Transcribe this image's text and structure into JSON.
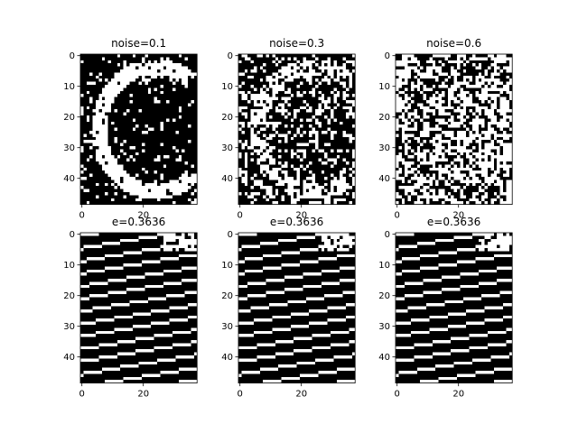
{
  "chart_data": [
    {
      "type": "heatmap",
      "title": "noise=0.1",
      "kind": "noisy-image",
      "noise": 0.1,
      "x_ticks": [
        0,
        20
      ],
      "y_ticks": [
        0,
        10,
        20,
        30,
        40
      ],
      "xlim": [
        -0.5,
        37.5
      ],
      "ylim": [
        48.5,
        -0.5
      ],
      "colormap": "gray (0=black, 1=white)",
      "grid": false
    },
    {
      "type": "heatmap",
      "title": "noise=0.3",
      "kind": "noisy-image",
      "noise": 0.3,
      "x_ticks": [
        0,
        20
      ],
      "y_ticks": [
        0,
        10,
        20,
        30,
        40
      ],
      "xlim": [
        -0.5,
        37.5
      ],
      "ylim": [
        48.5,
        -0.5
      ],
      "colormap": "gray (0=black, 1=white)",
      "grid": false
    },
    {
      "type": "heatmap",
      "title": "noise=0.6",
      "kind": "noisy-image",
      "noise": 0.6,
      "x_ticks": [
        0,
        20
      ],
      "y_ticks": [
        0,
        10,
        20,
        30,
        40
      ],
      "xlim": [
        -0.5,
        37.5
      ],
      "ylim": [
        48.5,
        -0.5
      ],
      "colormap": "gray (0=black, 1=white)",
      "grid": false
    },
    {
      "type": "heatmap",
      "title": "e=0.3636",
      "kind": "stripes",
      "x_ticks": [
        0,
        20
      ],
      "y_ticks": [
        0,
        10,
        20,
        30,
        40
      ],
      "xlim": [
        -0.5,
        37.5
      ],
      "ylim": [
        48.5,
        -0.5
      ],
      "colormap": "gray (0=black, 1=white)",
      "grid": false
    },
    {
      "type": "heatmap",
      "title": "e=0.3636",
      "kind": "stripes",
      "x_ticks": [
        0,
        20
      ],
      "y_ticks": [
        0,
        10,
        20,
        30,
        40
      ],
      "xlim": [
        -0.5,
        37.5
      ],
      "ylim": [
        48.5,
        -0.5
      ],
      "colormap": "gray (0=black, 1=white)",
      "grid": false
    },
    {
      "type": "heatmap",
      "title": "e=0.3636",
      "kind": "stripes",
      "x_ticks": [
        0,
        20
      ],
      "y_ticks": [
        0,
        10,
        20,
        30,
        40
      ],
      "xlim": [
        -0.5,
        37.5
      ],
      "ylim": [
        48.5,
        -0.5
      ],
      "colormap": "gray (0=black, 1=white)",
      "grid": false
    }
  ]
}
